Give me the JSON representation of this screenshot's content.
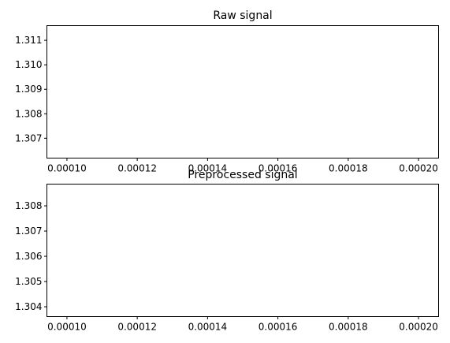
{
  "chart_data": [
    {
      "type": "line",
      "title": "Raw signal",
      "xlabel": "",
      "ylabel": "",
      "xlim": [
        9.43e-05,
        0.0002057
      ],
      "ylim": [
        1.30619,
        1.3116
      ],
      "xticks": [
        0.0001,
        0.00012,
        0.00014,
        0.00016,
        0.00018,
        0.0002
      ],
      "xtick_labels": [
        "0.00010",
        "0.00012",
        "0.00014",
        "0.00016",
        "0.00018",
        "0.00020"
      ],
      "yticks": [
        1.307,
        1.308,
        1.309,
        1.31,
        1.311
      ],
      "ytick_labels": [
        "1.307",
        "1.308",
        "1.309",
        "1.310",
        "1.311"
      ],
      "grid": false,
      "series": []
    },
    {
      "type": "line",
      "title": "Preprocessed signal",
      "xlabel": "",
      "ylabel": "",
      "xlim": [
        9.43e-05,
        0.0002057
      ],
      "ylim": [
        1.30361,
        1.30886
      ],
      "xticks": [
        0.0001,
        0.00012,
        0.00014,
        0.00016,
        0.00018,
        0.0002
      ],
      "xtick_labels": [
        "0.00010",
        "0.00012",
        "0.00014",
        "0.00016",
        "0.00018",
        "0.00020"
      ],
      "yticks": [
        1.304,
        1.305,
        1.306,
        1.307,
        1.308
      ],
      "ytick_labels": [
        "1.304",
        "1.305",
        "1.306",
        "1.307",
        "1.308"
      ],
      "grid": false,
      "series": []
    }
  ]
}
